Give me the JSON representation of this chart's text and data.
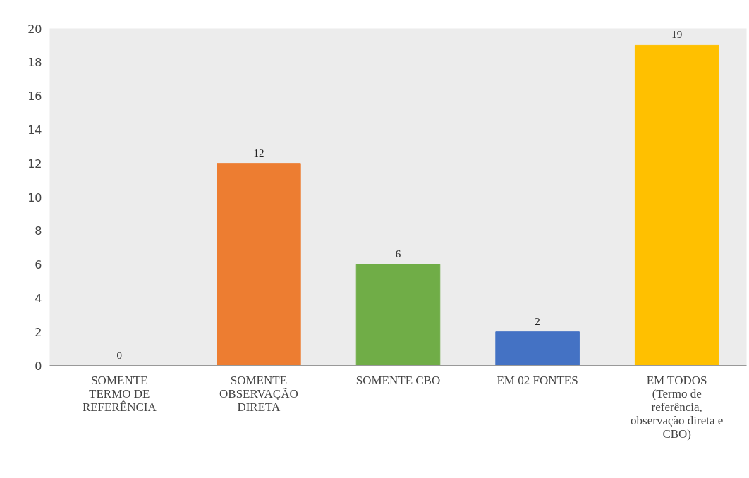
{
  "chart_data": {
    "type": "bar",
    "categories": [
      "SOMENTE\nTERMO DE\nREFERÊNCIA",
      "SOMENTE\nOBSERVAÇÃO\nDIRETA",
      "SOMENTE CBO",
      "EM 02 FONTES",
      "EM TODOS\n(Termo de\nreferência,\nobservação direta e\nCBO)"
    ],
    "values": [
      0,
      12,
      6,
      2,
      19
    ],
    "colors": [
      "#5b9bd5",
      "#ed7d31",
      "#70ad47",
      "#4472c4",
      "#ffc000"
    ],
    "ylim": [
      0,
      20
    ],
    "yticks": [
      0,
      2,
      4,
      6,
      8,
      10,
      12,
      14,
      16,
      18,
      20
    ],
    "data_labels": true,
    "grid": false
  }
}
